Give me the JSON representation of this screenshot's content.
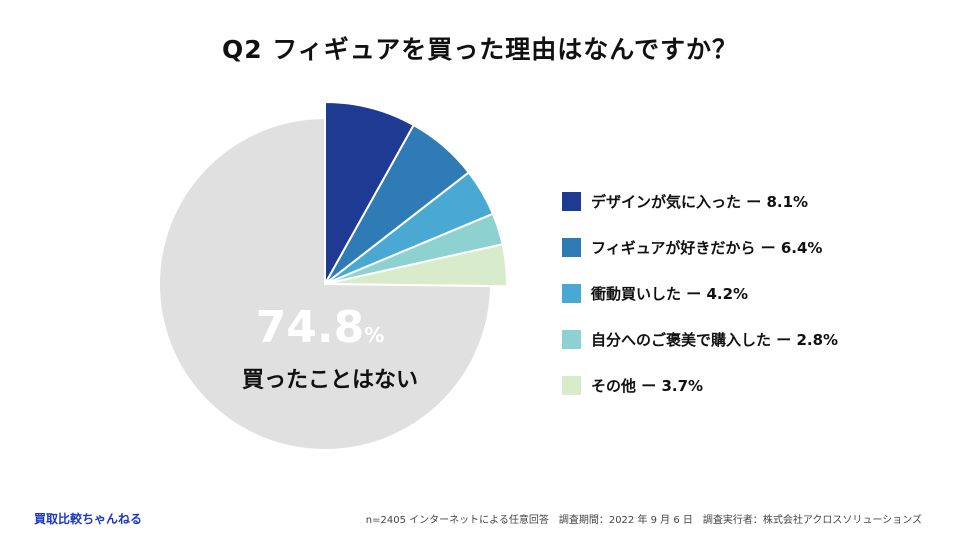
{
  "title": "Q2 フィギュアを買った理由はなんですか？",
  "brand": "買取比較ちゃんねる",
  "footnote": "n=2405 インターネットによる任意回答　調査期間：2022 年 9 月 6 日　調査実行者：株式会社アクロスソリューションズ",
  "chart_data": {
    "type": "pie",
    "title": "Q2 フィギュアを買った理由はなんですか？",
    "slices": [
      {
        "label": "デザインが気に入った",
        "value": 8.1,
        "color": "#1f3a93",
        "exploded": true
      },
      {
        "label": "フィギュアが好きだから",
        "value": 6.4,
        "color": "#2f7bb5",
        "exploded": true
      },
      {
        "label": "衝動買いした",
        "value": 4.2,
        "color": "#4aa9d2",
        "exploded": true
      },
      {
        "label": "自分へのご褒美で購入した",
        "value": 2.8,
        "color": "#8dd1d1",
        "exploded": true
      },
      {
        "label": "その他",
        "value": 3.7,
        "color": "#d8eccb",
        "exploded": true
      },
      {
        "label": "買ったことはない",
        "value": 74.8,
        "color": "#e0e0e0",
        "exploded": false
      }
    ],
    "legend": [
      {
        "text": "デザインが気に入った ー 8.1%",
        "color": "#1f3a93"
      },
      {
        "text": "フィギュアが好きだから ー 6.4%",
        "color": "#2f7bb5"
      },
      {
        "text": "衝動買いした ー 4.2%",
        "color": "#4aa9d2"
      },
      {
        "text": "自分へのご褒美で購入した ー 2.8%",
        "color": "#8dd1d1"
      },
      {
        "text": "その他 ー 3.7%",
        "color": "#d8eccb"
      }
    ],
    "legend_position": "right",
    "highlight": {
      "value": "74.8",
      "unit": "%",
      "label": "買ったことはない"
    }
  }
}
